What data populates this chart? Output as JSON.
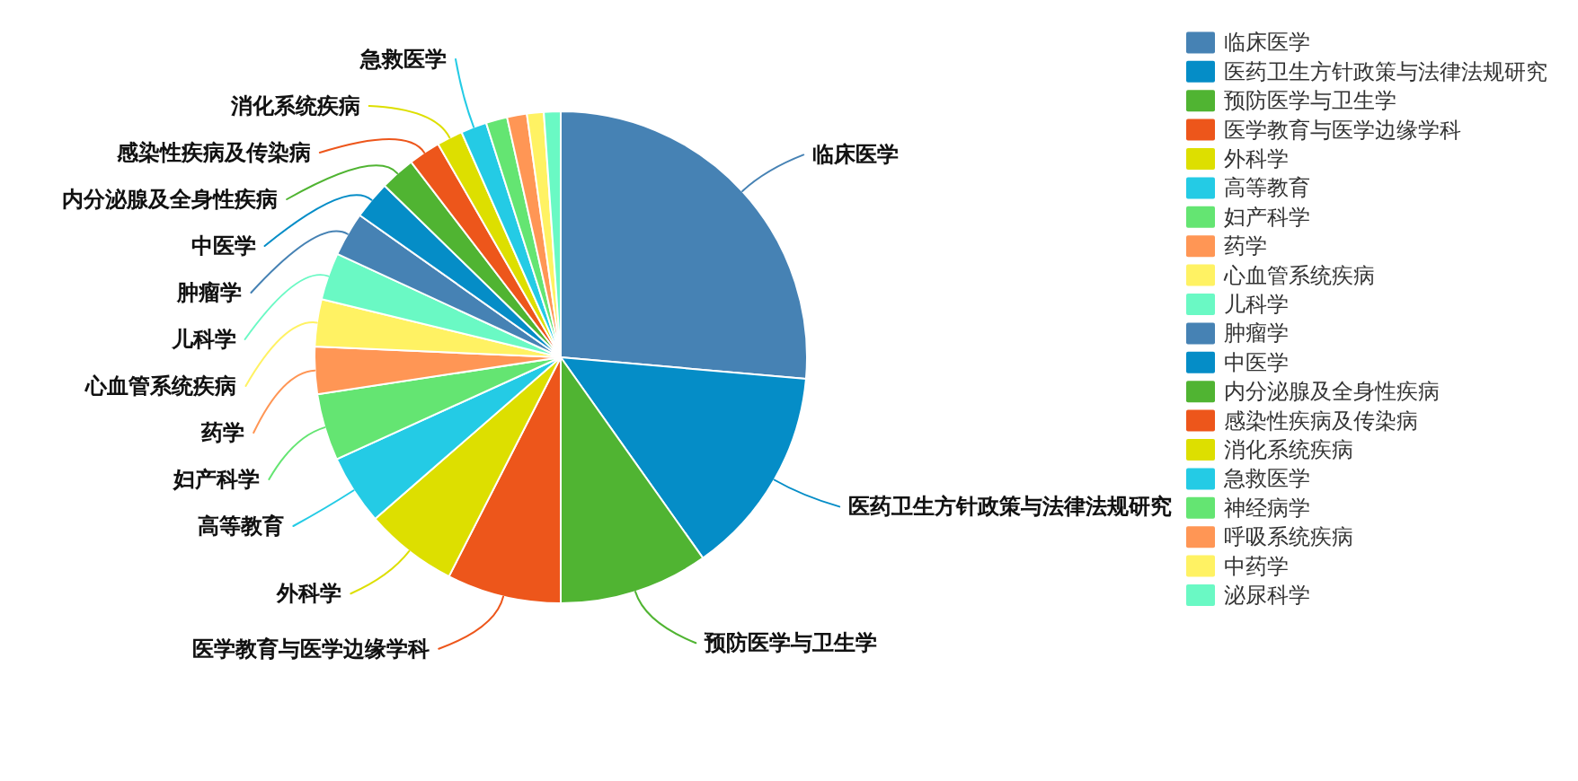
{
  "chart_data": {
    "type": "pie",
    "categories": [
      "临床医学",
      "医药卫生方针政策与法律法规研究",
      "预防医学与卫生学",
      "医学教育与医学边缘学科",
      "外科学",
      "高等教育",
      "妇产科学",
      "药学",
      "心血管系统疾病",
      "儿科学",
      "肿瘤学",
      "中医学",
      "内分泌腺及全身性疾病",
      "感染性疾病及传染病",
      "消化系统疾病",
      "急救医学",
      "神经病学",
      "呼吸系统疾病",
      "中药学",
      "泌尿科学"
    ],
    "values": [
      26.4,
      13.8,
      9.8,
      7.5,
      6.1,
      4.6,
      4.4,
      3.1,
      3.1,
      3.1,
      2.9,
      2.5,
      2.3,
      2.1,
      1.7,
      1.7,
      1.4,
      1.3,
      1.1,
      1.1
    ],
    "colors": [
      "#4682b4",
      "#058dc7",
      "#50b432",
      "#ed561b",
      "#dddf00",
      "#24cbe5",
      "#64e572",
      "#ff9655",
      "#fff263",
      "#6af9c4",
      "#4682b4",
      "#058dc7",
      "#50b432",
      "#ed561b",
      "#dddf00",
      "#24cbe5",
      "#64e572",
      "#ff9655",
      "#fff263",
      "#6af9c4"
    ],
    "legend": "right"
  }
}
